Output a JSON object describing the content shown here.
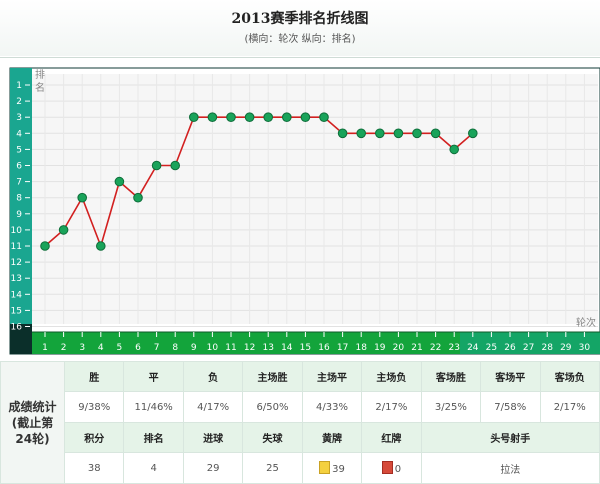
{
  "title": "2013赛季排名折线图",
  "subtitle": "(横向：轮次 纵向：排名)",
  "chart_data": {
    "type": "line",
    "ylabel": "排名",
    "xlabel": "轮次",
    "x_ticks": [
      "1",
      "2",
      "3",
      "4",
      "5",
      "6",
      "7",
      "8",
      "9",
      "10",
      "11",
      "12",
      "13",
      "14",
      "15",
      "16",
      "17",
      "18",
      "19",
      "20",
      "21",
      "22",
      "23",
      "24",
      "25",
      "26",
      "27",
      "28",
      "29",
      "30"
    ],
    "y_ticks": [
      "1",
      "2",
      "3",
      "4",
      "5",
      "6",
      "7",
      "8",
      "9",
      "10",
      "11",
      "12",
      "13",
      "14",
      "15",
      "16"
    ],
    "ylim": [
      1,
      16
    ],
    "xlim": [
      1,
      30
    ],
    "y_inverted": true,
    "grid": true,
    "series": [
      {
        "x": [
          1,
          2,
          3,
          4,
          5,
          6,
          7,
          8,
          9,
          10,
          11,
          12,
          13,
          14,
          15,
          16,
          17,
          18,
          19,
          20,
          21,
          22,
          23,
          24
        ],
        "values": [
          11,
          10,
          8,
          11,
          7,
          8,
          6,
          6,
          3,
          3,
          3,
          3,
          3,
          3,
          3,
          3,
          4,
          4,
          4,
          4,
          4,
          4,
          5,
          4
        ]
      }
    ],
    "colors": {
      "line": "#d22020",
      "marker": "#19a35a",
      "marker_edge": "#0e6e3a",
      "y_axis_bg": "#1aa690",
      "x_axis_bg": "#13a43b"
    }
  },
  "stats": {
    "side_label_1": "成绩统计",
    "side_label_2": "(截止第",
    "side_label_3": "24轮)",
    "headers_1": [
      "胜",
      "平",
      "负",
      "主场胜",
      "主场平",
      "主场负",
      "客场胜",
      "客场平",
      "客场负"
    ],
    "values_1": [
      "9/38%",
      "11/46%",
      "4/17%",
      "6/50%",
      "4/33%",
      "2/17%",
      "3/25%",
      "7/58%",
      "2/17%"
    ],
    "headers_2": [
      "积分",
      "排名",
      "进球",
      "失球",
      "黄牌",
      "红牌",
      "头号射手"
    ],
    "values_2": [
      "38",
      "4",
      "29",
      "25",
      "39",
      "0",
      "拉法"
    ]
  }
}
